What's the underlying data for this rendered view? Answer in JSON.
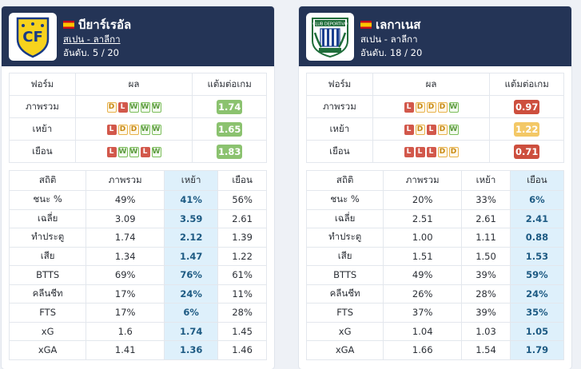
{
  "left": {
    "team": "บียาร์เรอัล",
    "league": "สเปน - ลาลีกา",
    "rank": "อันดับ. 5 / 20",
    "form_headers": [
      "ฟอร์ม",
      "ผล",
      "แต้มต่อเกม"
    ],
    "form_rows": [
      {
        "label": "ภาพรวม",
        "results": [
          "D",
          "L",
          "W",
          "W",
          "W"
        ],
        "ppg": "1.74",
        "ppg_color": "g"
      },
      {
        "label": "เหย้า",
        "results": [
          "L",
          "D",
          "D",
          "W",
          "W"
        ],
        "ppg": "1.65",
        "ppg_color": "g"
      },
      {
        "label": "เยือน",
        "results": [
          "L",
          "W",
          "W",
          "L",
          "W"
        ],
        "ppg": "1.83",
        "ppg_color": "g"
      }
    ],
    "stats_headers": [
      "สถิติ",
      "ภาพรวม",
      "เหย้า",
      "เยือน"
    ],
    "stats_rows": [
      {
        "label": "ชนะ %",
        "v": [
          "49%",
          "41%",
          "56%"
        ]
      },
      {
        "label": "เฉลี่ย",
        "v": [
          "3.09",
          "3.59",
          "2.61"
        ]
      },
      {
        "label": "ทำประตู",
        "v": [
          "1.74",
          "2.12",
          "1.39"
        ]
      },
      {
        "label": "เสีย",
        "v": [
          "1.34",
          "1.47",
          "1.22"
        ]
      },
      {
        "label": "BTTS",
        "v": [
          "69%",
          "76%",
          "61%"
        ]
      },
      {
        "label": "คลีนชีท",
        "v": [
          "17%",
          "24%",
          "11%"
        ]
      },
      {
        "label": "FTS",
        "v": [
          "17%",
          "6%",
          "28%"
        ]
      },
      {
        "label": "xG",
        "v": [
          "1.6",
          "1.74",
          "1.45"
        ]
      },
      {
        "label": "xGA",
        "v": [
          "1.41",
          "1.36",
          "1.46"
        ]
      }
    ],
    "highlight_col": 1
  },
  "right": {
    "team": "เลกาเนส",
    "league": "สเปน - ลาลีกา",
    "rank": "อันดับ. 18 / 20",
    "form_headers": [
      "ฟอร์ม",
      "ผล",
      "แต้มต่อเกม"
    ],
    "form_rows": [
      {
        "label": "ภาพรวม",
        "results": [
          "L",
          "D",
          "D",
          "D",
          "W"
        ],
        "ppg": "0.97",
        "ppg_color": "r"
      },
      {
        "label": "เหย้า",
        "results": [
          "L",
          "D",
          "L",
          "D",
          "W"
        ],
        "ppg": "1.22",
        "ppg_color": "o"
      },
      {
        "label": "เยือน",
        "results": [
          "L",
          "L",
          "L",
          "D",
          "D"
        ],
        "ppg": "0.71",
        "ppg_color": "r"
      }
    ],
    "stats_headers": [
      "สถิติ",
      "ภาพรวม",
      "เหย้า",
      "เยือน"
    ],
    "stats_rows": [
      {
        "label": "ชนะ %",
        "v": [
          "20%",
          "33%",
          "6%"
        ]
      },
      {
        "label": "เฉลี่ย",
        "v": [
          "2.51",
          "2.61",
          "2.41"
        ]
      },
      {
        "label": "ทำประตู",
        "v": [
          "1.00",
          "1.11",
          "0.88"
        ]
      },
      {
        "label": "เสีย",
        "v": [
          "1.51",
          "1.50",
          "1.53"
        ]
      },
      {
        "label": "BTTS",
        "v": [
          "49%",
          "39%",
          "59%"
        ]
      },
      {
        "label": "คลีนชีท",
        "v": [
          "26%",
          "28%",
          "24%"
        ]
      },
      {
        "label": "FTS",
        "v": [
          "37%",
          "39%",
          "35%"
        ]
      },
      {
        "label": "xG",
        "v": [
          "1.04",
          "1.03",
          "1.05"
        ]
      },
      {
        "label": "xGA",
        "v": [
          "1.66",
          "1.54",
          "1.79"
        ]
      }
    ],
    "highlight_col": 2
  },
  "colors": {
    "header_bg": "#243456",
    "highlight": "#def0fb",
    "win": "#7bbd5a",
    "draw": "#e8b24a",
    "loss": "#d2584b"
  }
}
